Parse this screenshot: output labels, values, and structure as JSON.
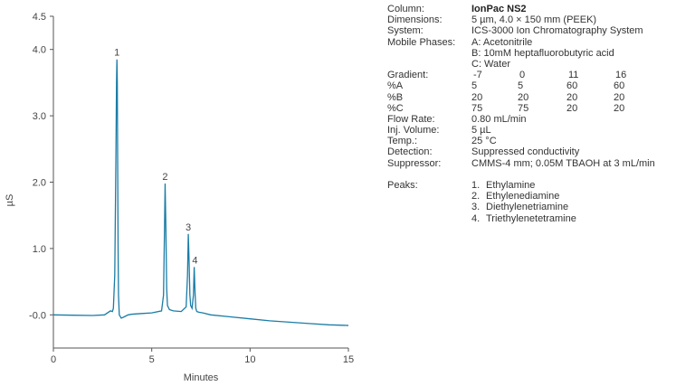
{
  "chart_data": {
    "type": "line",
    "title": "",
    "xlabel": "Minutes",
    "ylabel": "µS",
    "xlim": [
      0,
      15
    ],
    "ylim": [
      -0.5,
      4.5
    ],
    "x_ticks": [
      "0",
      "5",
      "10",
      "15"
    ],
    "y_ticks": [
      "-0.0",
      "1.0",
      "2.0",
      "3.0",
      "4.0",
      "4.5"
    ],
    "grid": false,
    "series_color": "#1b7ca6",
    "series": [
      {
        "x": [
          0,
          1,
          2,
          2.6,
          2.9,
          3.0,
          3.05,
          3.12,
          3.18,
          3.21,
          3.23,
          3.25,
          3.27,
          3.29,
          3.31,
          3.35,
          3.45,
          3.6,
          3.8,
          4.0,
          4.5,
          5.0,
          5.5,
          5.6,
          5.65,
          5.68,
          5.72,
          5.76,
          5.8,
          5.9,
          6.1,
          6.5,
          6.75,
          6.82,
          6.86,
          6.9,
          6.94,
          6.98,
          7.05,
          7.12,
          7.16,
          7.2,
          7.24,
          7.29,
          7.4,
          7.6,
          8.0,
          9.0,
          10.0,
          11.0,
          12.0,
          13.0,
          14.0,
          15.0
        ],
        "y": [
          0.0,
          -0.005,
          -0.01,
          0.0,
          0.06,
          0.05,
          0.1,
          0.6,
          2.4,
          3.5,
          3.85,
          3.5,
          2.2,
          1.0,
          0.3,
          0.0,
          -0.05,
          -0.03,
          0.0,
          0.01,
          0.02,
          0.03,
          0.06,
          0.3,
          1.3,
          1.98,
          1.3,
          0.4,
          0.14,
          0.08,
          0.06,
          0.05,
          0.12,
          0.6,
          1.22,
          0.8,
          0.3,
          0.14,
          0.1,
          0.3,
          0.72,
          0.35,
          0.1,
          0.05,
          0.04,
          0.03,
          0.0,
          -0.03,
          -0.06,
          -0.09,
          -0.11,
          -0.13,
          -0.15,
          -0.16
        ]
      }
    ],
    "peaks": [
      {
        "label": "1",
        "x": 3.23,
        "y": 3.85
      },
      {
        "label": "2",
        "x": 5.68,
        "y": 1.98
      },
      {
        "label": "3",
        "x": 6.86,
        "y": 1.22
      },
      {
        "label": "4",
        "x": 7.2,
        "y": 0.72
      }
    ]
  },
  "conditions": {
    "column": {
      "label": "Column:",
      "value": "IonPac NS2"
    },
    "dimensions": {
      "label": "Dimensions:",
      "value": "5 µm, 4.0 × 150 mm (PEEK)"
    },
    "system": {
      "label": "System:",
      "value": "ICS-3000 Ion Chromatography System"
    },
    "mobile_phases": {
      "label": "Mobile Phases:",
      "a": "A: Acetonitrile",
      "b": "B: 10mM heptafluorobutyric acid",
      "c": "C: Water"
    },
    "gradient": {
      "label": "Gradient:",
      "values": [
        "-7",
        "0",
        "11",
        "16"
      ]
    },
    "pct_a": {
      "label": "%A",
      "values": [
        "5",
        "5",
        "60",
        "60"
      ]
    },
    "pct_b": {
      "label": "%B",
      "values": [
        "20",
        "20",
        "20",
        "20"
      ]
    },
    "pct_c": {
      "label": "%C",
      "values": [
        "75",
        "75",
        "20",
        "20"
      ]
    },
    "flow_rate": {
      "label": "Flow Rate:",
      "value": "0.80 mL/min"
    },
    "inj_volume": {
      "label": "Inj. Volume:",
      "value": "5 µL"
    },
    "temp": {
      "label": "Temp.:",
      "value": "25 °C"
    },
    "detection": {
      "label": "Detection:",
      "value": "Suppressed conductivity"
    },
    "suppressor": {
      "label": "Suppressor:",
      "value": "CMMS-4 mm; 0.05M TBAOH at 3 mL/min"
    },
    "peaks": {
      "label": "Peaks:",
      "items": [
        {
          "num": "1.",
          "name": "Ethylamine"
        },
        {
          "num": "2.",
          "name": "Ethylenediamine"
        },
        {
          "num": "3.",
          "name": "Diethylenetriamine"
        },
        {
          "num": "4.",
          "name": "Triethylenetetramine"
        }
      ]
    }
  }
}
